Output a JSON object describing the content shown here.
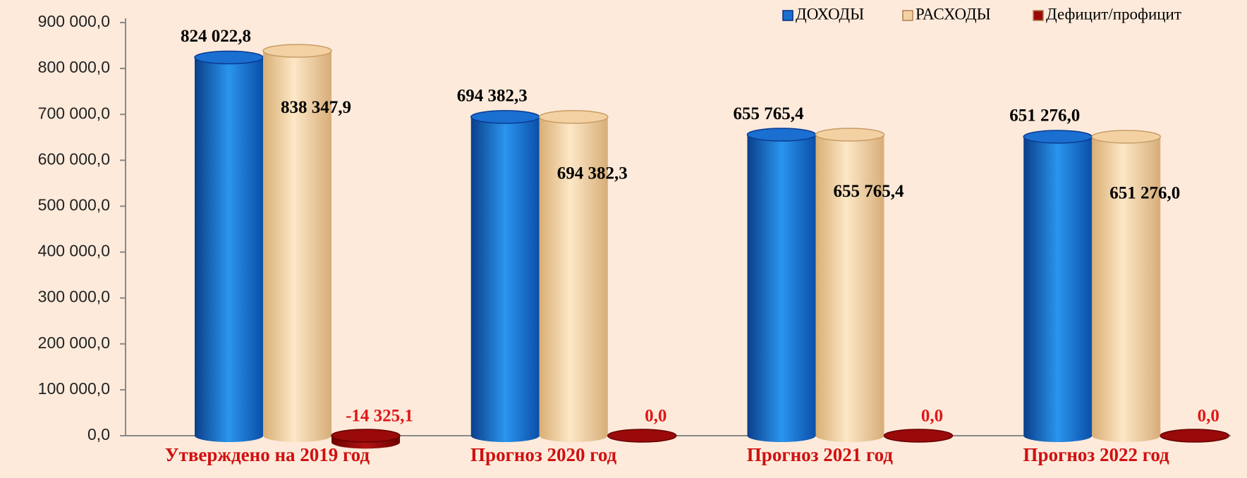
{
  "chart_data": {
    "type": "bar3d",
    "categories": [
      "Утверждено на 2019 год",
      "Прогноз 2020 год",
      "Прогноз 2021 год",
      "Прогноз 2022 год"
    ],
    "series": [
      {
        "name": "ДОХОДЫ",
        "color": "#1a6fd0",
        "values": [
          824022.8,
          694382.3,
          655765.4,
          651276.0
        ],
        "value_labels": [
          "824 022,8",
          "694 382,3",
          "655 765,4",
          "651 276,0"
        ]
      },
      {
        "name": "РАСХОДЫ",
        "color": "#f3d1a2",
        "values": [
          838347.9,
          694382.3,
          655765.4,
          651276.0
        ],
        "value_labels": [
          "838 347,9",
          "694 382,3",
          "655 765,4",
          "651 276,0"
        ]
      },
      {
        "name": "Дефицит/профицит",
        "color": "#9a0a0a",
        "values": [
          -14325.1,
          0.0,
          0.0,
          0.0
        ],
        "value_labels": [
          "-14 325,1",
          "0,0",
          "0,0",
          "0,0"
        ]
      }
    ],
    "ylim": [
      0,
      900000
    ],
    "yticks": [
      {
        "value": 0,
        "label": "0,0"
      },
      {
        "value": 100000,
        "label": "100 000,0"
      },
      {
        "value": 200000,
        "label": "200 000,0"
      },
      {
        "value": 300000,
        "label": "300 000,0"
      },
      {
        "value": 400000,
        "label": "400 000,0"
      },
      {
        "value": 500000,
        "label": "500 000,0"
      },
      {
        "value": 600000,
        "label": "600 000,0"
      },
      {
        "value": 700000,
        "label": "700 000,0"
      },
      {
        "value": 800000,
        "label": "800 000,0"
      },
      {
        "value": 900000,
        "label": "900 000,0"
      }
    ],
    "legend": "top-right"
  }
}
